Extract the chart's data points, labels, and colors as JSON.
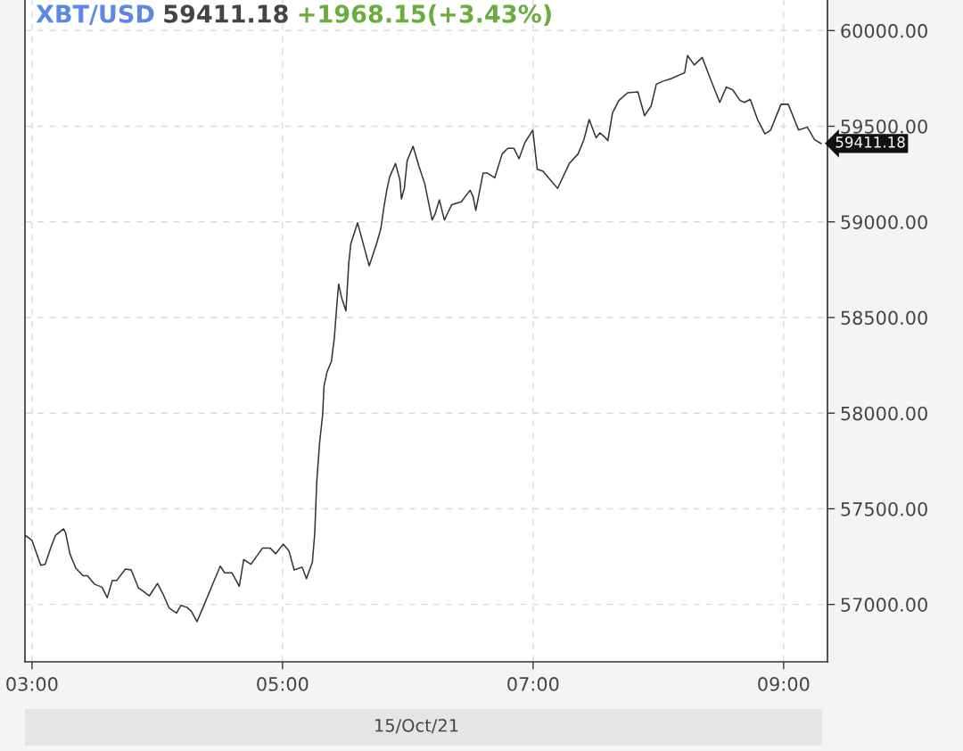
{
  "chart_data": {
    "type": "line",
    "title": "XBT/USD",
    "xlabel": "15/Oct/21",
    "annotations": [
      "59411.18",
      "+1968.15(+3.43%)",
      "59411.18"
    ],
    "x": [
      2.949,
      3.0,
      3.07,
      3.105,
      3.152,
      3.187,
      3.252,
      3.268,
      3.303,
      3.35,
      3.408,
      3.443,
      3.501,
      3.559,
      3.601,
      3.641,
      3.676,
      3.746,
      3.792,
      3.851,
      3.886,
      3.937,
      4.002,
      4.049,
      4.096,
      4.154,
      4.189,
      4.236,
      4.271,
      4.317,
      4.376,
      4.445,
      4.503,
      4.538,
      4.597,
      4.655,
      4.69,
      4.748,
      4.841,
      4.9,
      4.946,
      5.005,
      5.051,
      5.093,
      5.156,
      5.191,
      5.238,
      5.257,
      5.273,
      5.296,
      5.32,
      5.331,
      5.355,
      5.39,
      5.413,
      5.436,
      5.448,
      5.471,
      5.506,
      5.529,
      5.545,
      5.599,
      5.657,
      5.692,
      5.75,
      5.785,
      5.809,
      5.832,
      5.855,
      5.902,
      5.937,
      5.949,
      5.972,
      5.995,
      6.042,
      6.089,
      6.135,
      6.194,
      6.217,
      6.252,
      6.292,
      6.31,
      6.352,
      6.427,
      6.497,
      6.52,
      6.543,
      6.601,
      6.636,
      6.694,
      6.753,
      6.799,
      6.846,
      6.888,
      6.935,
      6.998,
      7.033,
      7.079,
      7.196,
      7.289,
      7.359,
      7.406,
      7.448,
      7.503,
      7.534,
      7.569,
      7.597,
      7.634,
      7.685,
      7.755,
      7.837,
      7.89,
      7.942,
      7.984,
      8.035,
      8.105,
      8.175,
      8.21,
      8.233,
      8.287,
      8.35,
      8.408,
      8.49,
      8.543,
      8.594,
      8.652,
      8.687,
      8.734,
      8.792,
      8.851,
      8.897,
      8.979,
      9.037,
      9.119,
      9.189,
      9.247,
      9.299
    ],
    "series": [
      {
        "color": "#333333",
        "values": [
          57360,
          57335,
          57205,
          57210,
          57300,
          57360,
          57395,
          57375,
          57265,
          57190,
          57150,
          57150,
          57105,
          57090,
          57035,
          57125,
          57125,
          57185,
          57180,
          57085,
          57070,
          57045,
          57110,
          57050,
          56980,
          56955,
          56995,
          56985,
          56965,
          56910,
          57000,
          57110,
          57200,
          57165,
          57165,
          57095,
          57235,
          57210,
          57295,
          57295,
          57265,
          57315,
          57280,
          57180,
          57195,
          57135,
          57220,
          57370,
          57640,
          57845,
          57990,
          58140,
          58215,
          58270,
          58390,
          58585,
          58675,
          58605,
          58535,
          58785,
          58885,
          58995,
          58855,
          58770,
          58885,
          58965,
          59075,
          59165,
          59235,
          59305,
          59220,
          59120,
          59175,
          59320,
          59395,
          59290,
          59200,
          59010,
          59040,
          59115,
          59010,
          59035,
          59090,
          59105,
          59165,
          59135,
          59060,
          59255,
          59255,
          59230,
          59355,
          59385,
          59385,
          59330,
          59415,
          59480,
          59275,
          59265,
          59175,
          59305,
          59355,
          59430,
          59535,
          59440,
          59465,
          59445,
          59425,
          59570,
          59635,
          59675,
          59680,
          59555,
          59605,
          59720,
          59735,
          59750,
          59770,
          59780,
          59870,
          59820,
          59860,
          59760,
          59625,
          59705,
          59690,
          59635,
          59625,
          59640,
          59535,
          59460,
          59480,
          59615,
          59615,
          59480,
          59495,
          59430,
          59410
        ]
      }
    ],
    "xlim": [
      2.944,
      9.35
    ],
    "xticks": [
      {
        "value": 3,
        "label": "03:00"
      },
      {
        "value": 5,
        "label": "05:00"
      },
      {
        "value": 7,
        "label": "07:00"
      },
      {
        "value": 9,
        "label": "09:00"
      }
    ],
    "ylim": [
      56700,
      60160
    ],
    "yticks": [
      {
        "value": 57000,
        "label": "57000.00"
      },
      {
        "value": 57500,
        "label": "57500.00"
      },
      {
        "value": 58000,
        "label": "58000.00"
      },
      {
        "value": 58500,
        "label": "58500.00"
      },
      {
        "value": 59000,
        "label": "59000.00"
      },
      {
        "value": 59500,
        "label": "59500.00"
      },
      {
        "value": 60000,
        "label": "60000.00"
      }
    ],
    "grid": true
  }
}
